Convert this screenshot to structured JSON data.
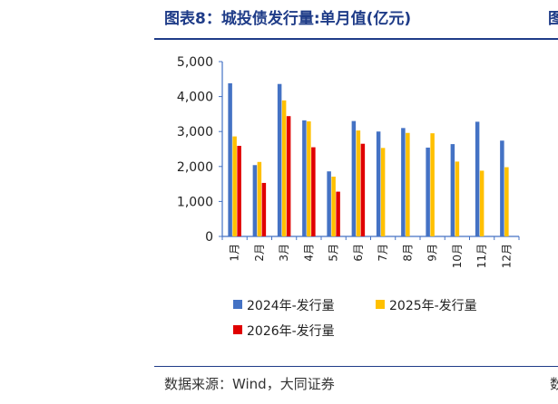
{
  "header": {
    "title": "图表8：城投债发行量:单月值(亿元)",
    "next_title_fragment": "图"
  },
  "footer": {
    "source": "数据来源：Wind，大同证券",
    "next_source_fragment": "数"
  },
  "chart_data": {
    "type": "bar",
    "title": "",
    "xlabel": "",
    "ylabel": "",
    "ylim": [
      0,
      5000
    ],
    "y_ticks": [
      "0",
      "1,000",
      "2,000",
      "3,000",
      "4,000",
      "5,000"
    ],
    "grid": false,
    "legend_position": "bottom",
    "categories": [
      "1月",
      "2月",
      "3月",
      "4月",
      "5月",
      "6月",
      "7月",
      "8月",
      "9月",
      "10月",
      "11月",
      "12月"
    ],
    "series": [
      {
        "name": "2024年-发行量",
        "color": "#4472c4",
        "values": [
          4380,
          2040,
          4360,
          3320,
          1860,
          3300,
          3000,
          3100,
          2540,
          2640,
          3280,
          2740
        ]
      },
      {
        "name": "2025年-发行量",
        "color": "#ffc000",
        "values": [
          2860,
          2130,
          3890,
          3290,
          1710,
          3030,
          2530,
          2960,
          2950,
          2140,
          1880,
          1980
        ]
      },
      {
        "name": "2026年-发行量",
        "color": "#e00000",
        "values": [
          2590,
          1530,
          3440,
          2550,
          1280,
          2650,
          null,
          null,
          null,
          null,
          null,
          null
        ]
      }
    ]
  }
}
